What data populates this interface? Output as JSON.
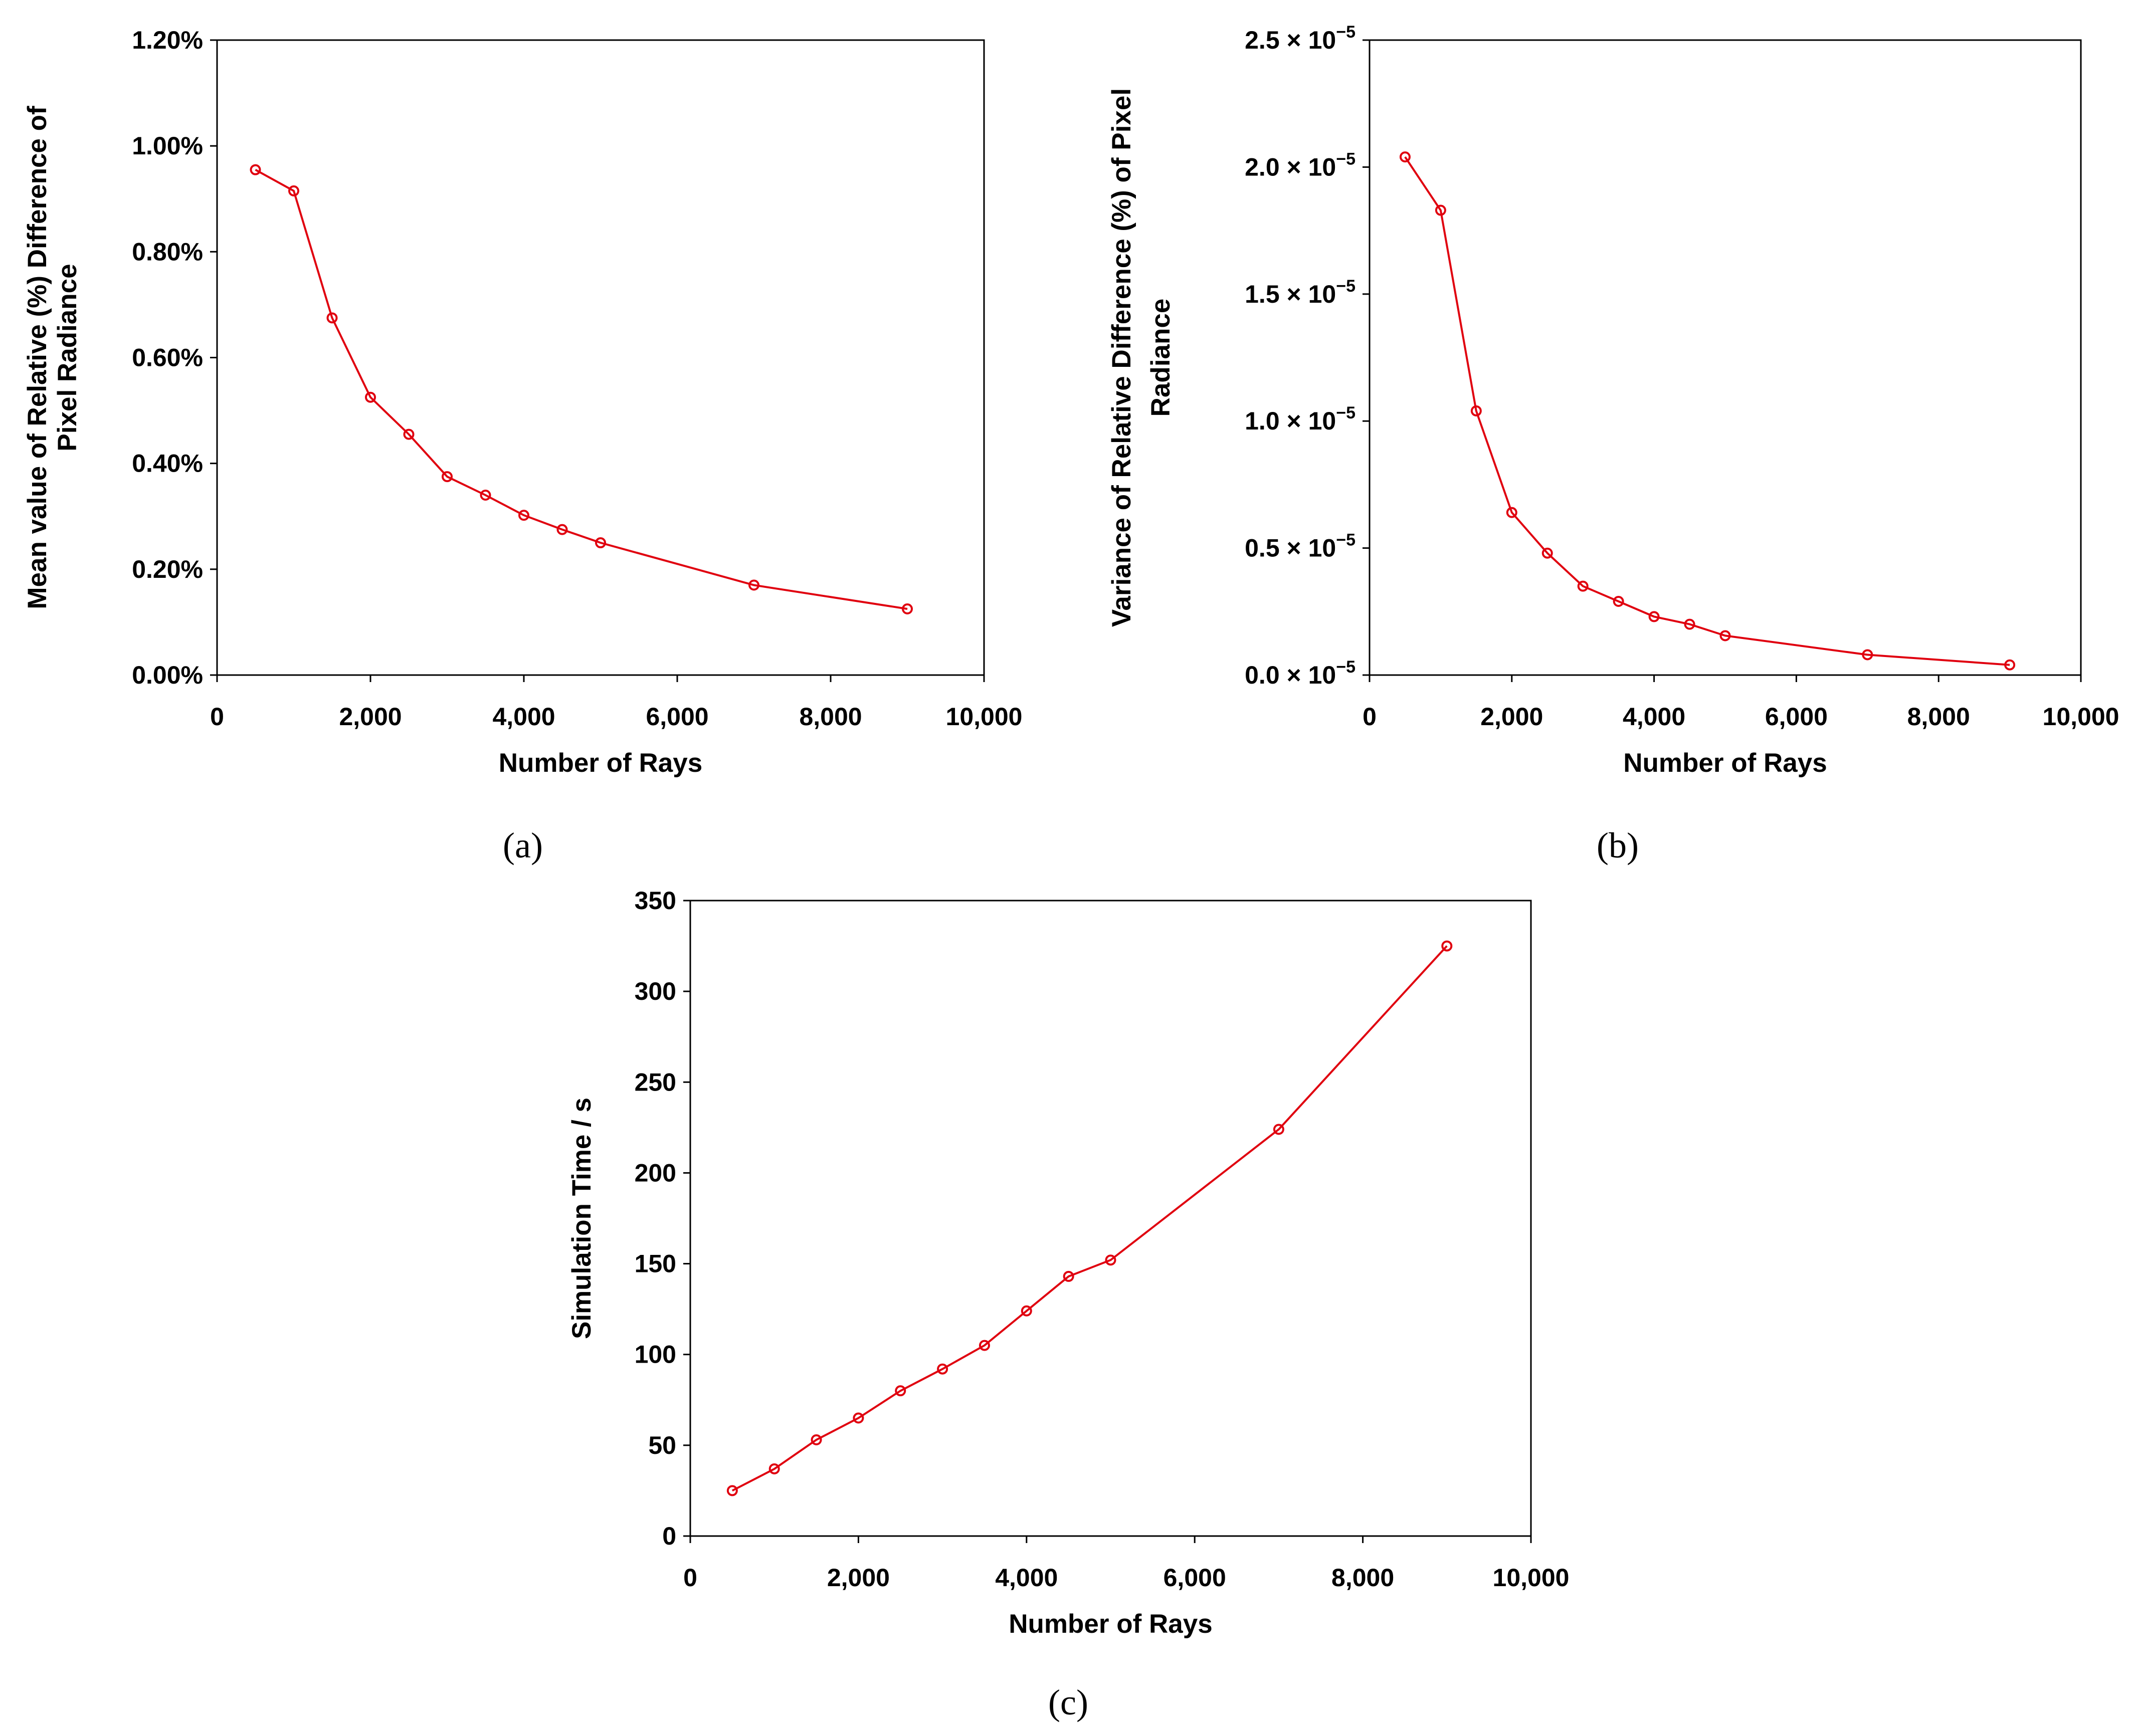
{
  "colors": {
    "series": "#e0000f",
    "axis": "#000000",
    "text": "#000000"
  },
  "chart_data": [
    {
      "id": "a",
      "type": "line",
      "caption": "(a)",
      "xlabel": "Number of Rays",
      "ylabel_lines": [
        "Mean value of Relative (%) Difference of",
        "Pixel Radiance"
      ],
      "xlim": [
        0,
        10000
      ],
      "ylim": [
        0,
        1.2
      ],
      "x_ticks": [
        0,
        2000,
        4000,
        6000,
        8000,
        10000
      ],
      "x_tick_labels": [
        "0",
        "2,000",
        "4,000",
        "6,000",
        "8,000",
        "10,000"
      ],
      "y_ticks": [
        0,
        0.2,
        0.4,
        0.6,
        0.8,
        1.0,
        1.2
      ],
      "y_tick_labels": [
        "0.00%",
        "0.20%",
        "0.40%",
        "0.60%",
        "0.80%",
        "1.00%",
        "1.20%"
      ],
      "x": [
        500,
        1000,
        1500,
        2000,
        2500,
        3000,
        3500,
        4000,
        4500,
        5000,
        7000,
        9000
      ],
      "y": [
        0.955,
        0.915,
        0.675,
        0.525,
        0.455,
        0.375,
        0.34,
        0.302,
        0.275,
        0.25,
        0.17,
        0.125
      ]
    },
    {
      "id": "b",
      "type": "line",
      "caption": "(b)",
      "xlabel": "Number of Rays",
      "ylabel_lines": [
        "Variance of Relative Difference (%) of Pixel",
        "Radiance"
      ],
      "xlim": [
        0,
        10000
      ],
      "ylim": [
        0,
        2.5
      ],
      "x_ticks": [
        0,
        2000,
        4000,
        6000,
        8000,
        10000
      ],
      "x_tick_labels": [
        "0",
        "2,000",
        "4,000",
        "6,000",
        "8,000",
        "10,000"
      ],
      "y_ticks": [
        0,
        0.5,
        1.0,
        1.5,
        2.0,
        2.5
      ],
      "y_tick_labels": [
        "0.0 × 10",
        "0.5 × 10",
        "1.0 × 10",
        "1.5 × 10",
        "2.0 × 10",
        "2.5 × 10"
      ],
      "y_tick_exponent": "−5",
      "x": [
        500,
        1000,
        1500,
        2000,
        2500,
        3000,
        3500,
        4000,
        4500,
        5000,
        7000,
        9000
      ],
      "y": [
        2.04,
        1.83,
        1.04,
        0.64,
        0.48,
        0.35,
        0.29,
        0.23,
        0.2,
        0.155,
        0.08,
        0.04
      ]
    },
    {
      "id": "c",
      "type": "line",
      "caption": "(c)",
      "xlabel": "Number of Rays",
      "ylabel_lines": [
        "Simulation Time / s"
      ],
      "xlim": [
        0,
        10000
      ],
      "ylim": [
        0,
        350
      ],
      "x_ticks": [
        0,
        2000,
        4000,
        6000,
        8000,
        10000
      ],
      "x_tick_labels": [
        "0",
        "2,000",
        "4,000",
        "6,000",
        "8,000",
        "10,000"
      ],
      "y_ticks": [
        0,
        50,
        100,
        150,
        200,
        250,
        300,
        350
      ],
      "y_tick_labels": [
        "0",
        "50",
        "100",
        "150",
        "200",
        "250",
        "300",
        "350"
      ],
      "x": [
        500,
        1000,
        1500,
        2000,
        2500,
        3000,
        3500,
        4000,
        4500,
        5000,
        7000,
        9000
      ],
      "y": [
        25,
        37,
        53,
        65,
        80,
        92,
        105,
        124,
        143,
        152,
        224,
        325
      ]
    }
  ]
}
